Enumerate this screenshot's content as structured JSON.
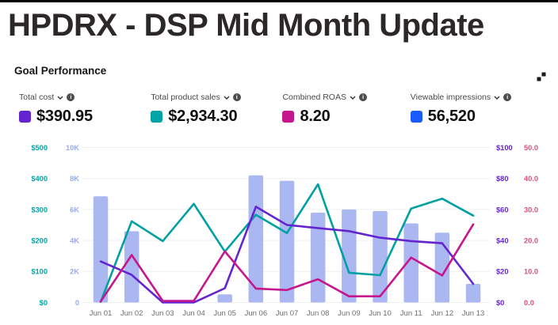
{
  "page": {
    "title": "HPDRX - DSP Mid Month Update"
  },
  "section": {
    "title": "Goal Performance"
  },
  "kpis": [
    {
      "label": "Total cost",
      "value": "$390.95",
      "color": "#6425d0"
    },
    {
      "label": "Total product sales",
      "value": "$2,934.30",
      "color": "#00a4a6"
    },
    {
      "label": "Combined ROAS",
      "value": "8.20",
      "color": "#c6168d"
    },
    {
      "label": "Viewable impressions",
      "value": "56,520",
      "color": "#1a5aff"
    }
  ],
  "chart_data": {
    "type": "bar",
    "subtype": "combo-bar-line",
    "categories": [
      "Jun 01",
      "Jun 02",
      "Jun 03",
      "Jun 04",
      "Jun 05",
      "Jun 06",
      "Jun 07",
      "Jun 08",
      "Jun 09",
      "Jun 10",
      "Jun 11",
      "Jun 12",
      "Jun 13"
    ],
    "series": [
      {
        "name": "Viewable impressions",
        "type": "bar",
        "axis": "impressions",
        "color": "#aab7f0",
        "values": [
          6850,
          4600,
          0,
          0,
          520,
          8200,
          7850,
          5800,
          6000,
          5900,
          5100,
          4500,
          1200
        ]
      },
      {
        "name": "Total product sales",
        "type": "line",
        "axis": "sales",
        "color": "#00a0a3",
        "values": [
          2,
          262,
          198,
          318,
          164,
          283,
          224,
          381,
          96,
          88,
          303,
          335,
          280
        ]
      },
      {
        "name": "Total cost",
        "type": "line",
        "axis": "cost",
        "color": "#6425d0",
        "values": [
          26.5,
          17.8,
          0,
          0,
          9.2,
          61.8,
          50,
          48,
          46,
          41.8,
          39.6,
          38.2,
          12
        ]
      },
      {
        "name": "Combined ROAS",
        "type": "line",
        "axis": "roas",
        "color": "#c6168d",
        "values": [
          0.3,
          15.3,
          0.5,
          0.5,
          16.5,
          4.5,
          4,
          7.5,
          2,
          2,
          14.5,
          8.7,
          25.2
        ]
      }
    ],
    "axes": {
      "sales": {
        "min": 0,
        "max": 500,
        "side": "left-outer",
        "color": "#00a4a6",
        "ticks": [
          "$500",
          "$400",
          "$300",
          "$200",
          "$100",
          "$0"
        ]
      },
      "impressions": {
        "min": 0,
        "max": 10000,
        "side": "left-inner",
        "color": "#9aabee",
        "ticks": [
          "10K",
          "8K",
          "6K",
          "4K",
          "2K",
          "0"
        ]
      },
      "cost": {
        "min": 0,
        "max": 100,
        "side": "right-inner",
        "color": "#6425d0",
        "ticks": [
          "$100",
          "$80",
          "$60",
          "$40",
          "$20",
          "$0"
        ]
      },
      "roas": {
        "min": 0,
        "max": 50,
        "side": "right-outer",
        "color": "#d4517e",
        "ticks": [
          "50.0",
          "40.0",
          "30.0",
          "20.0",
          "10.0",
          "0.0"
        ]
      }
    },
    "grid": true,
    "legend_position": "none",
    "xlabel": "",
    "ylabel": "",
    "x_tick_color": "#6e6e6e",
    "gridline_color": "#efefef"
  }
}
